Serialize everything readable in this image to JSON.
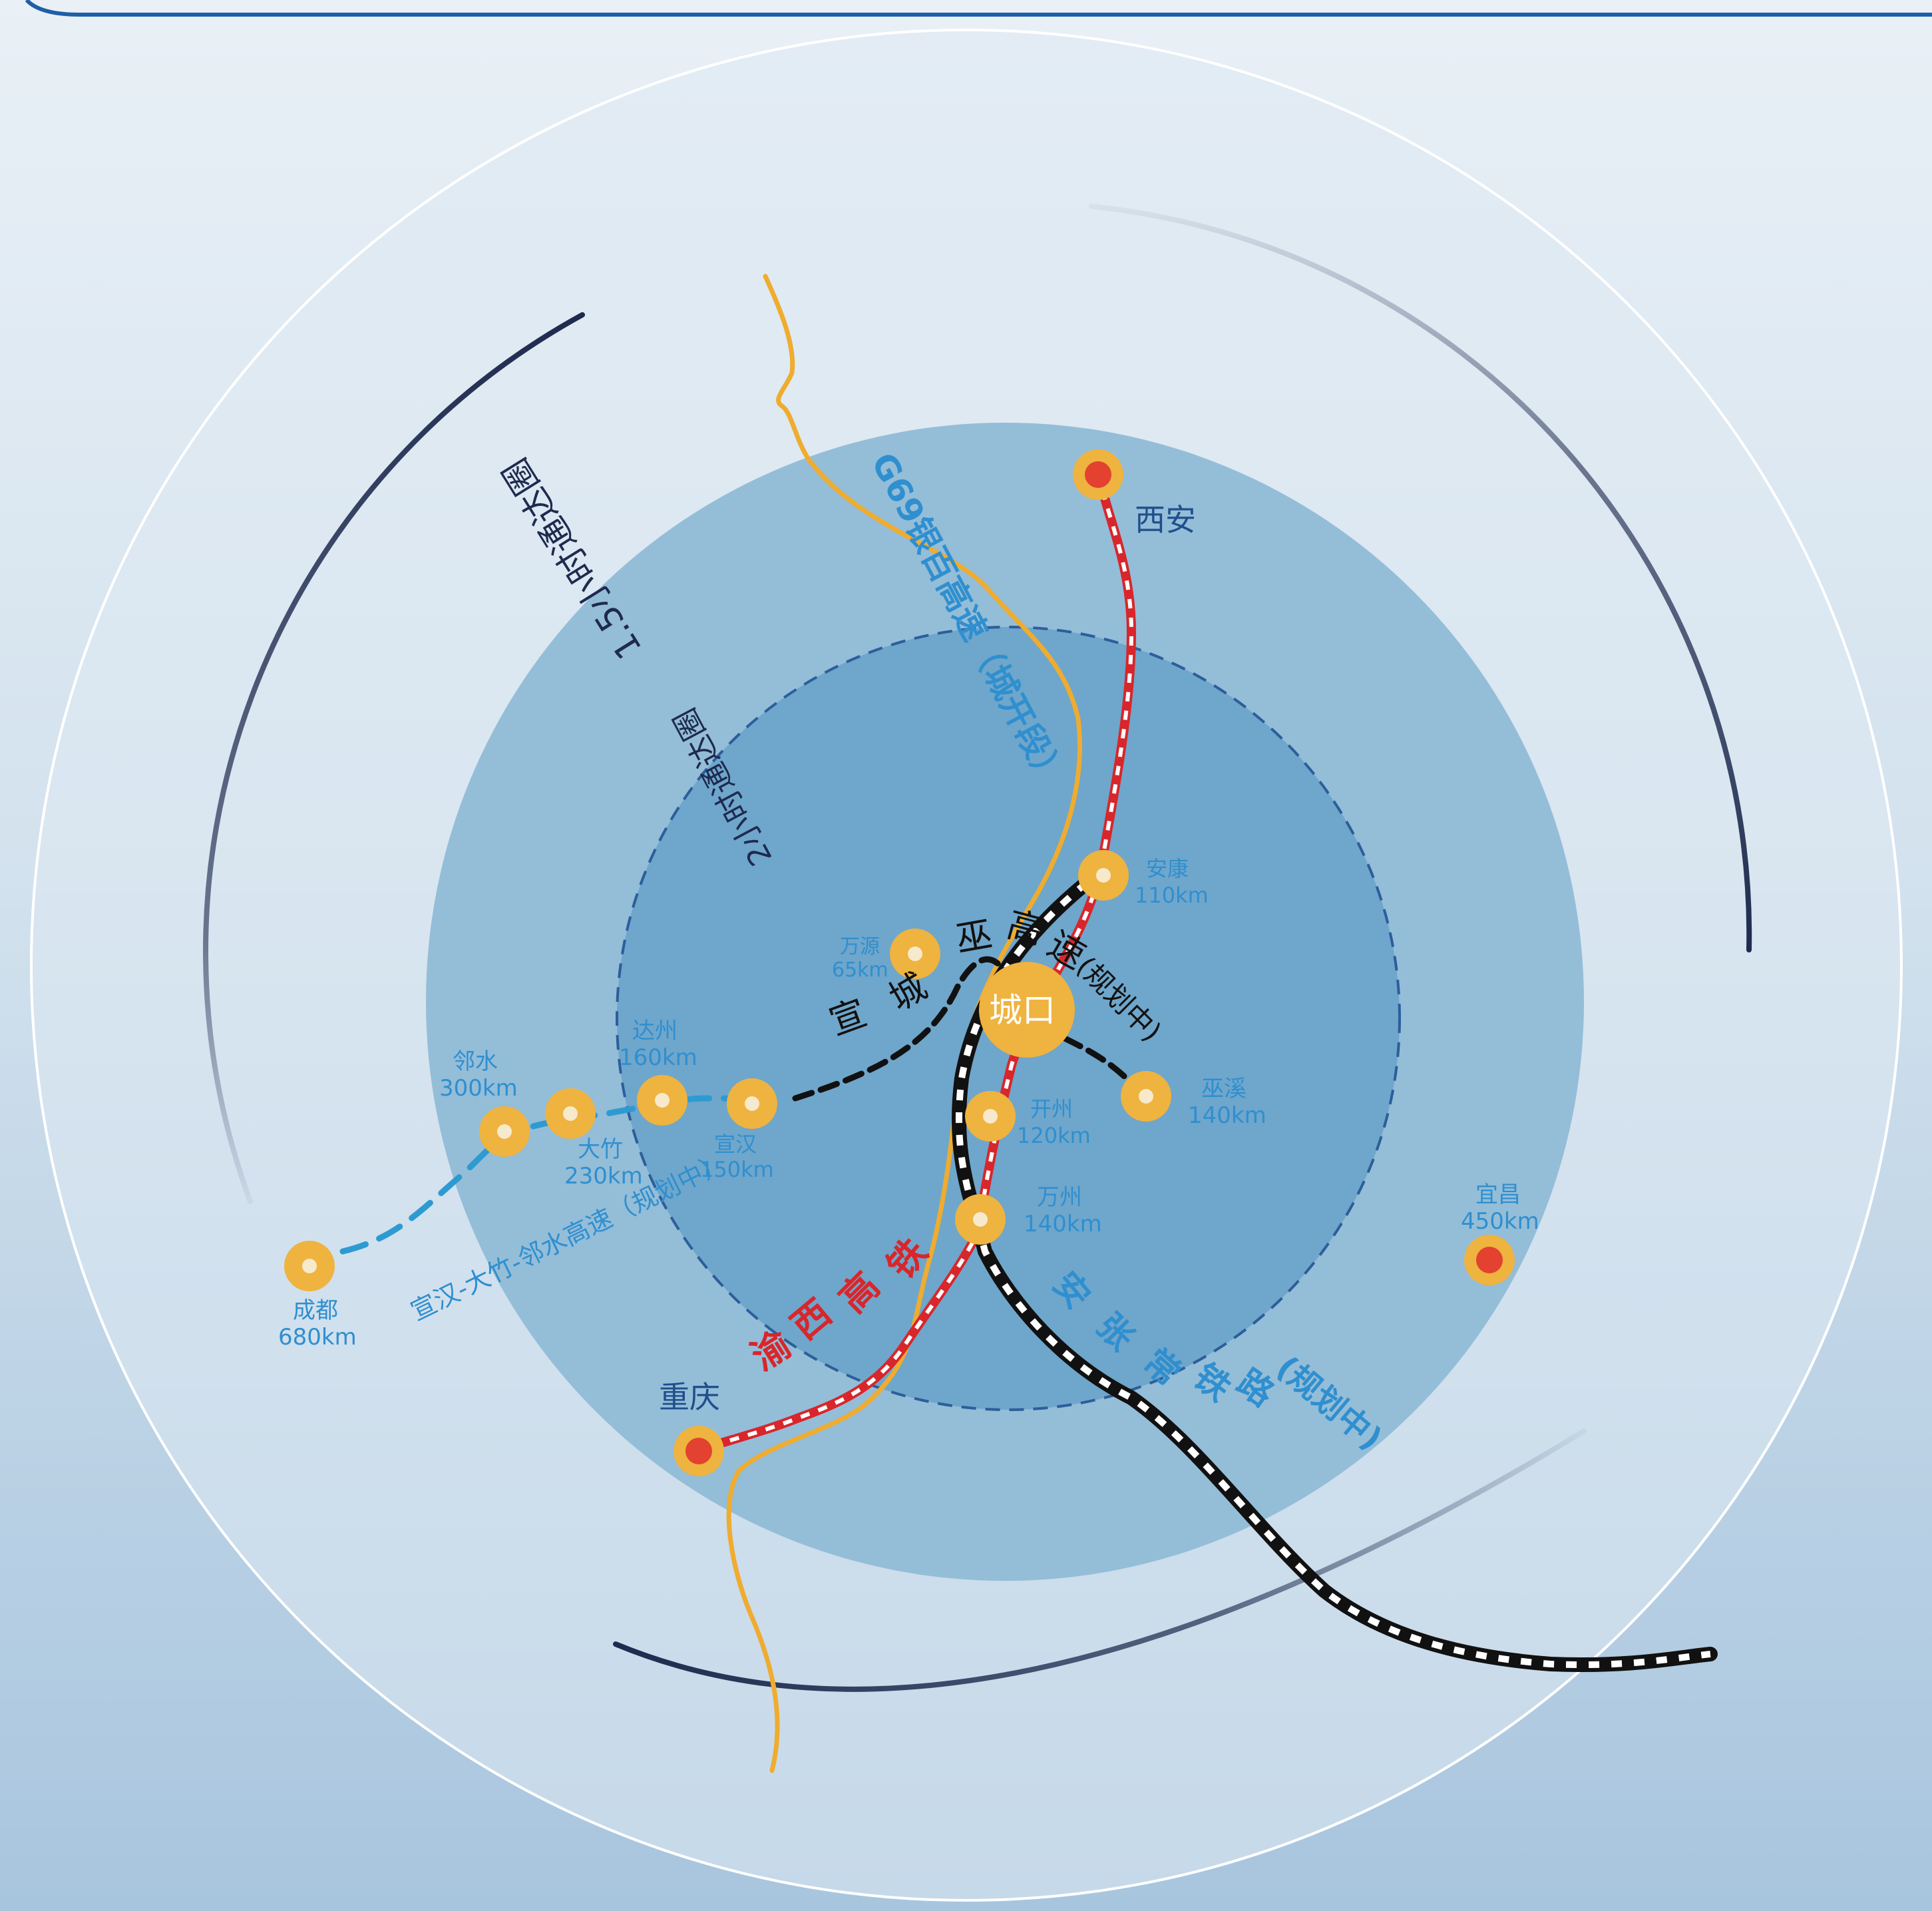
{
  "center": {
    "name": "城口"
  },
  "rings": {
    "outer_label": "1.5小时通达圈",
    "inner_label": "2小时通达圈"
  },
  "routes": {
    "g69": "G69银百高速（城开段）",
    "xuan_cheng_wu_label": [
      "宣",
      "城",
      "巫",
      "高",
      "速",
      "(规划中)"
    ],
    "xuanhan_linshui": "宣汉-大竹-邻水高速（规划中）",
    "yuxi_hsr": [
      "渝",
      "西",
      "高",
      "铁"
    ],
    "anzhangchang": [
      "安",
      "张",
      "常",
      "铁",
      "路",
      "(规划中)"
    ]
  },
  "cities": [
    {
      "name": "西安",
      "dist": ""
    },
    {
      "name": "安康",
      "dist": "110km"
    },
    {
      "name": "万源",
      "dist": "65km"
    },
    {
      "name": "达州",
      "dist": "160km"
    },
    {
      "name": "邻水",
      "dist": "300km"
    },
    {
      "name": "大竹",
      "dist": "230km"
    },
    {
      "name": "宣汉",
      "dist": "150km"
    },
    {
      "name": "开州",
      "dist": "120km"
    },
    {
      "name": "巫溪",
      "dist": "140km"
    },
    {
      "name": "万州",
      "dist": "140km"
    },
    {
      "name": "宜昌",
      "dist": "450km"
    },
    {
      "name": "成都",
      "dist": "680km"
    },
    {
      "name": "重庆",
      "dist": ""
    }
  ],
  "colors": {
    "node": "#efb33f",
    "node_core": "#f7e9cc",
    "major_core": "#e2422f",
    "hsr_red": "#d8262b",
    "highway_orange": "#efac2f",
    "rail_black": "#111111",
    "planned_blue": "#2d9bd2",
    "text_blue": "#2f8fcf",
    "dark_navy": "#1e2a4e"
  }
}
